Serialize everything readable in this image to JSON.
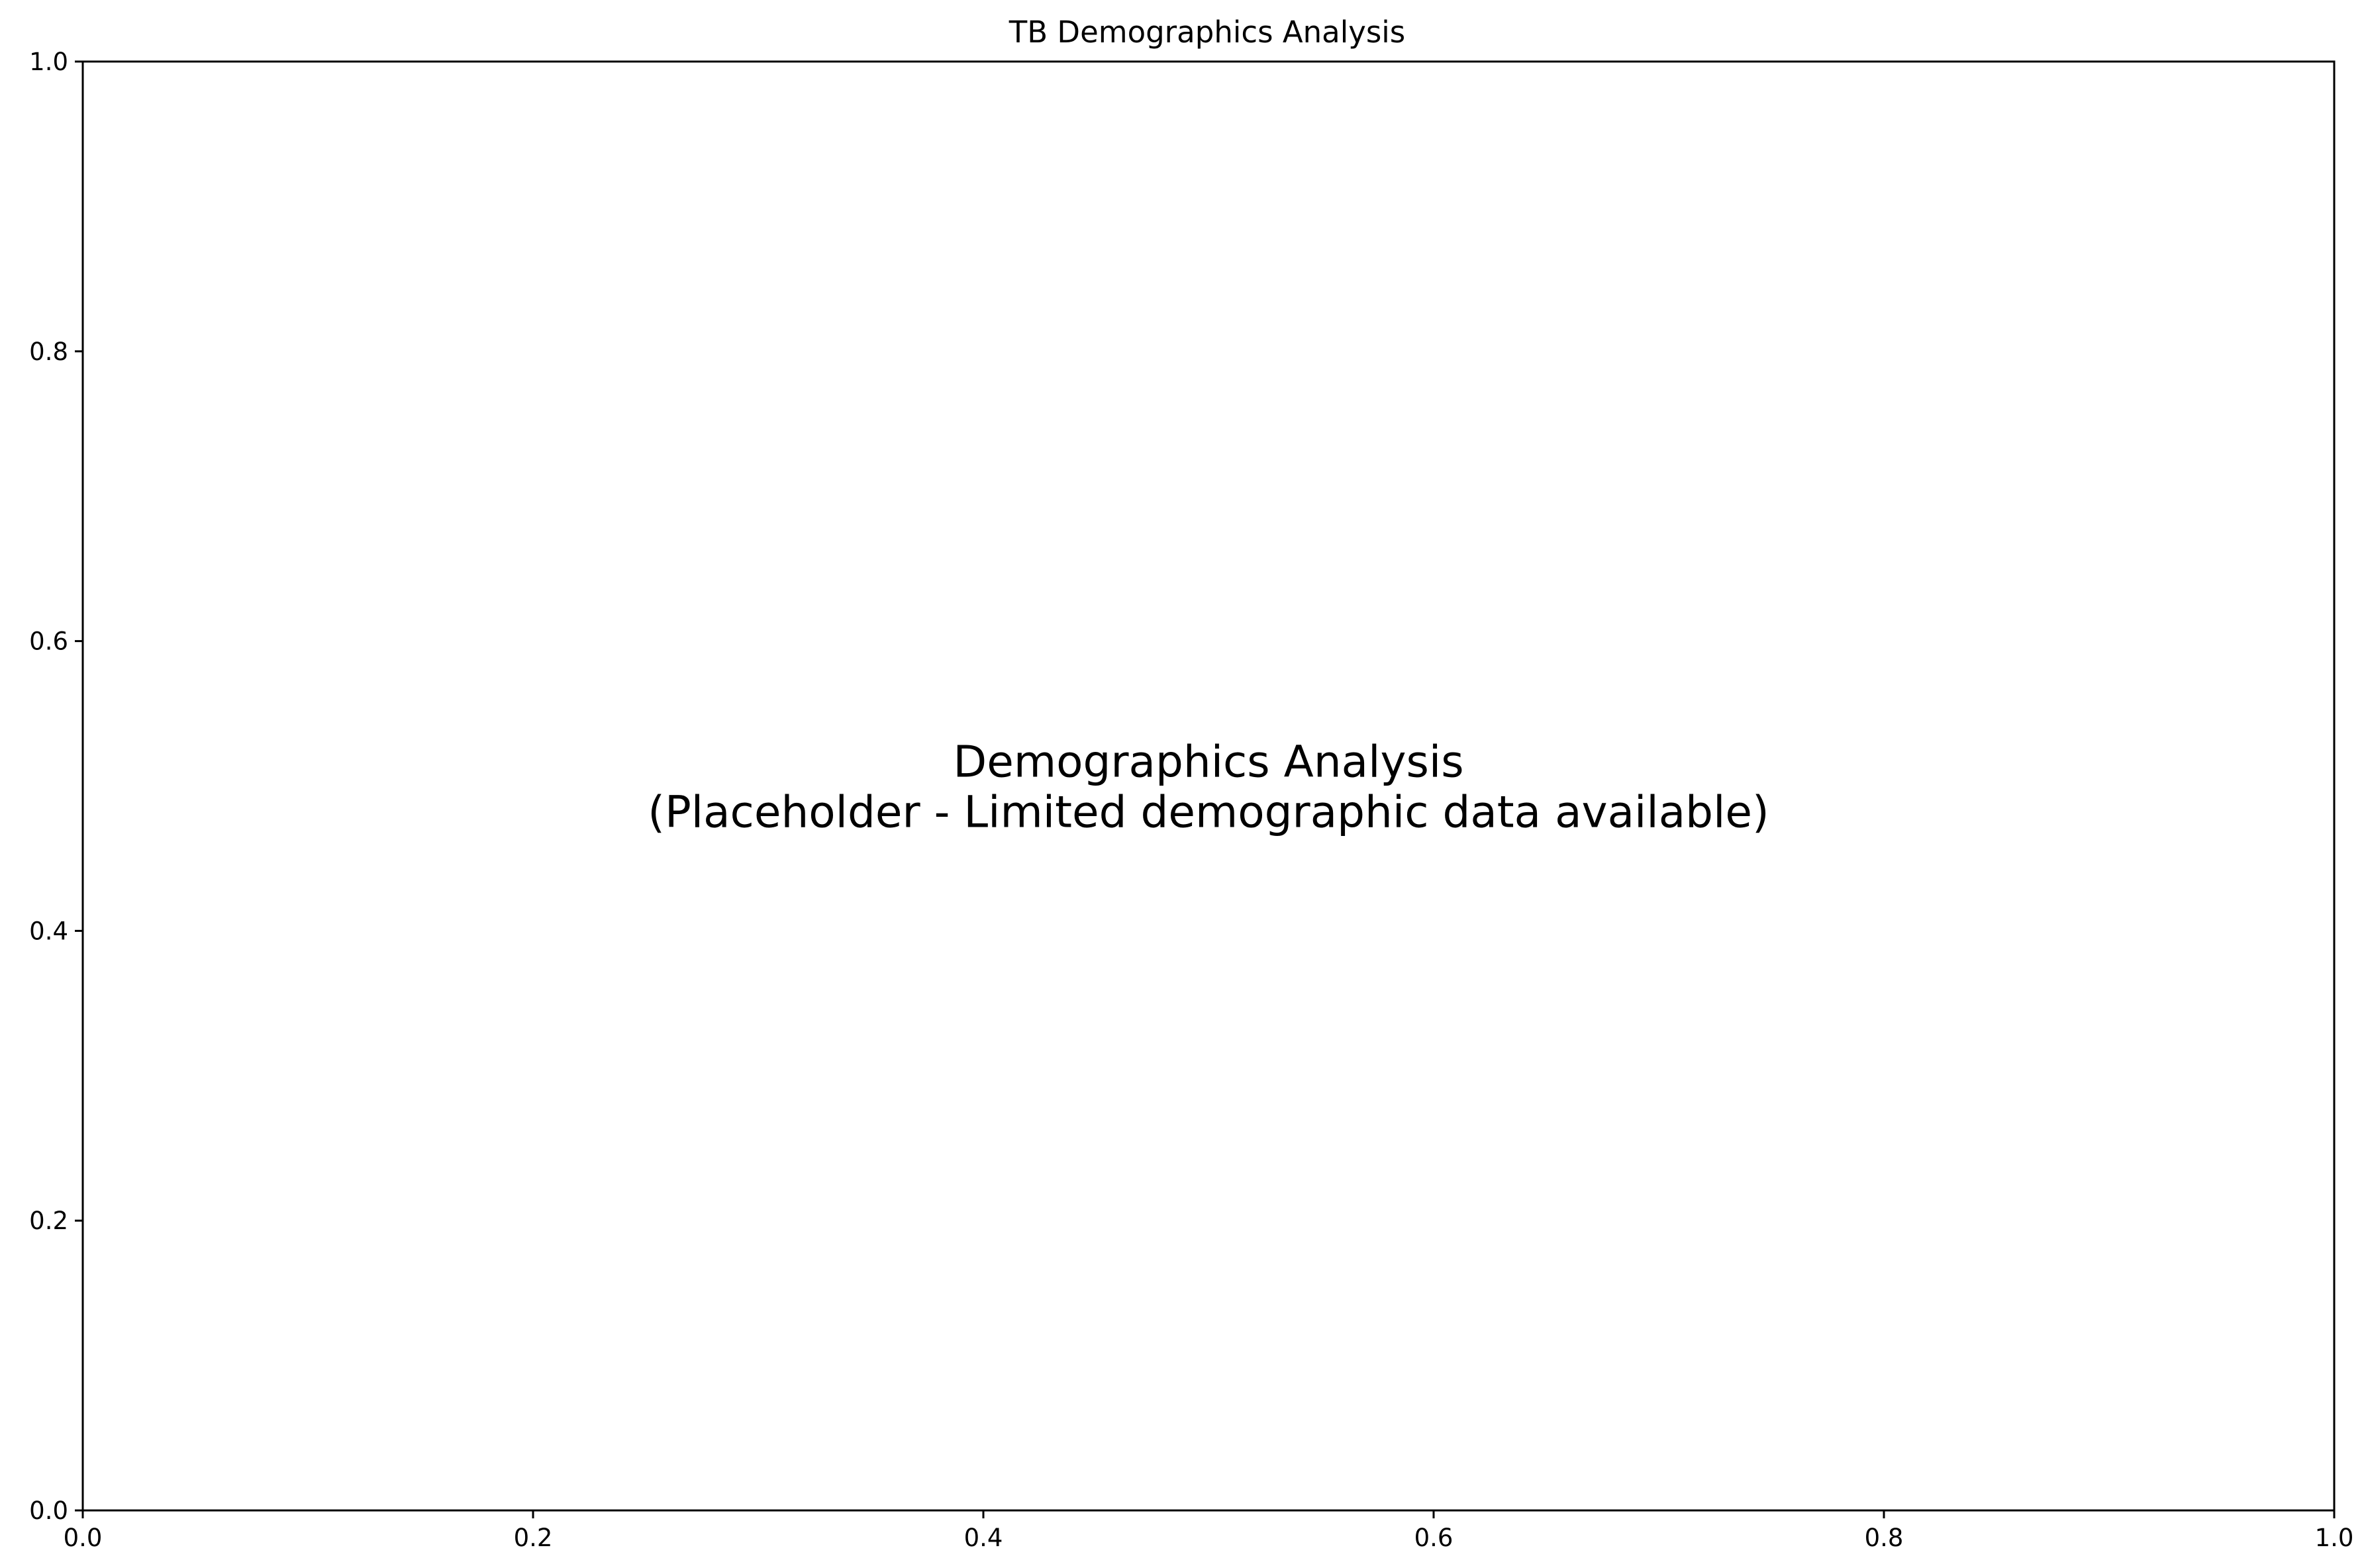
{
  "chart_data": {
    "type": "scatter",
    "title": "TB Demographics Analysis",
    "xlabel": "",
    "ylabel": "",
    "xlim": [
      0.0,
      1.0
    ],
    "ylim": [
      0.0,
      1.0
    ],
    "x_ticks": [
      0.0,
      0.2,
      0.4,
      0.6,
      0.8,
      1.0
    ],
    "y_ticks": [
      0.0,
      0.2,
      0.4,
      0.6,
      0.8,
      1.0
    ],
    "x_tick_labels": [
      "0.0",
      "0.2",
      "0.4",
      "0.6",
      "0.8",
      "1.0"
    ],
    "y_tick_labels": [
      "0.0",
      "0.2",
      "0.4",
      "0.6",
      "0.8",
      "1.0"
    ],
    "grid": false,
    "series": [],
    "annotation": {
      "x": 0.5,
      "y": 0.5,
      "lines": [
        "Demographics Analysis",
        "(Placeholder - Limited demographic data available)"
      ]
    },
    "colors": {
      "axes": "#000000",
      "background": "#ffffff"
    }
  }
}
